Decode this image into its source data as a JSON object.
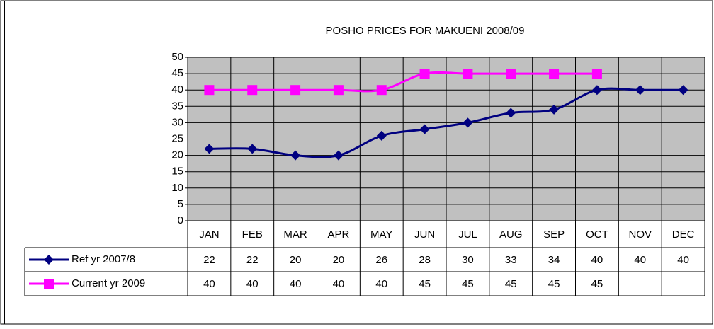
{
  "chart_data": {
    "type": "line",
    "title": "POSHO PRICES FOR MAKUENI 2008/09",
    "categories": [
      "JAN",
      "FEB",
      "MAR",
      "APR",
      "MAY",
      "JUN",
      "JUL",
      "AUG",
      "SEP",
      "OCT",
      "NOV",
      "DEC"
    ],
    "series": [
      {
        "name": "Ref yr 2007/8",
        "color": "#000080",
        "marker": "diamond",
        "values": [
          22,
          22,
          20,
          20,
          26,
          28,
          30,
          33,
          34,
          40,
          40,
          40
        ]
      },
      {
        "name": "Current yr 2009",
        "color": "#ff00ff",
        "marker": "square",
        "values": [
          40,
          40,
          40,
          40,
          40,
          45,
          45,
          45,
          45,
          45,
          null,
          null
        ]
      }
    ],
    "ylim": [
      0,
      50
    ],
    "yticks": [
      0,
      5,
      10,
      15,
      20,
      25,
      30,
      35,
      40,
      45,
      50
    ],
    "grid": true,
    "data_table": true
  }
}
